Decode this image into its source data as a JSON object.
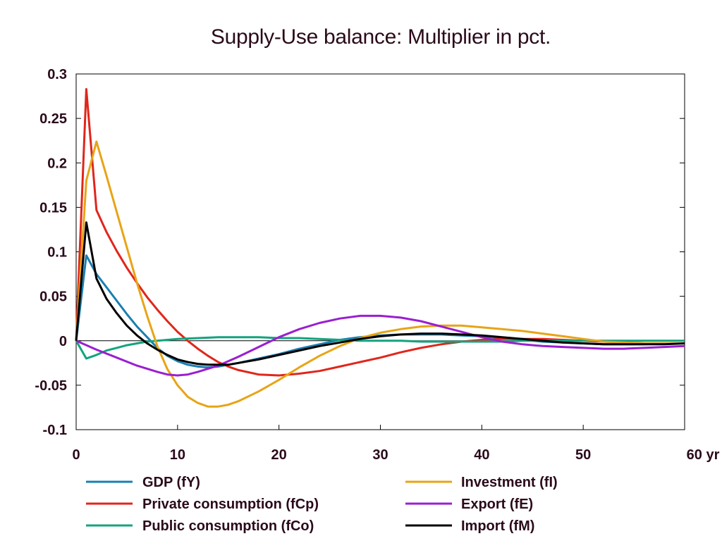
{
  "chart_data": {
    "type": "line",
    "title": "Supply-Use balance: Multiplier in pct.",
    "xlabel": "",
    "ylabel": "",
    "x_unit_label": "yr",
    "xlim": [
      0,
      60
    ],
    "ylim": [
      -0.1,
      0.3
    ],
    "x_ticks": [
      0,
      10,
      20,
      30,
      40,
      50,
      60
    ],
    "x_tick_labels": [
      "0",
      "10",
      "20",
      "30",
      "40",
      "50",
      "60 yr"
    ],
    "y_ticks": [
      -0.1,
      -0.05,
      0,
      0.05,
      0.1,
      0.15,
      0.2,
      0.25,
      0.3
    ],
    "y_tick_labels": [
      "-0.1",
      "-0.05",
      "0",
      "0.05",
      "0.1",
      "0.15",
      "0.2",
      "0.25",
      "0.3"
    ],
    "grid": false,
    "zero_line": true,
    "legend_position": "bottom",
    "series": [
      {
        "name": "GDP (fY)",
        "color": "#1a7fb0",
        "points": [
          [
            0,
            0
          ],
          [
            1,
            0.096
          ],
          [
            2,
            0.075
          ],
          [
            3,
            0.06
          ],
          [
            4,
            0.045
          ],
          [
            5,
            0.03
          ],
          [
            6,
            0.016
          ],
          [
            7,
            0.004
          ],
          [
            8,
            -0.008
          ],
          [
            9,
            -0.017
          ],
          [
            10,
            -0.023
          ],
          [
            11,
            -0.027
          ],
          [
            12,
            -0.029
          ],
          [
            13,
            -0.03
          ],
          [
            14,
            -0.029
          ],
          [
            15,
            -0.027
          ],
          [
            16,
            -0.025
          ],
          [
            18,
            -0.02
          ],
          [
            20,
            -0.015
          ],
          [
            22,
            -0.009
          ],
          [
            24,
            -0.004
          ],
          [
            26,
            0.001
          ],
          [
            28,
            0.004
          ],
          [
            30,
            0.006
          ],
          [
            32,
            0.007
          ],
          [
            34,
            0.007
          ],
          [
            36,
            0.007
          ],
          [
            38,
            0.006
          ],
          [
            40,
            0.005
          ],
          [
            42,
            0.003
          ],
          [
            44,
            0.001
          ],
          [
            46,
            -0.001
          ],
          [
            48,
            -0.002
          ],
          [
            50,
            -0.003
          ],
          [
            52,
            -0.004
          ],
          [
            54,
            -0.004
          ],
          [
            56,
            -0.004
          ],
          [
            58,
            -0.003
          ],
          [
            60,
            -0.003
          ]
        ]
      },
      {
        "name": "Private consumption (fCp)",
        "color": "#e0261b",
        "points": [
          [
            0,
            0
          ],
          [
            1,
            0.283
          ],
          [
            2,
            0.147
          ],
          [
            3,
            0.122
          ],
          [
            4,
            0.101
          ],
          [
            5,
            0.082
          ],
          [
            6,
            0.065
          ],
          [
            7,
            0.049
          ],
          [
            8,
            0.035
          ],
          [
            9,
            0.022
          ],
          [
            10,
            0.01
          ],
          [
            11,
            0.0
          ],
          [
            12,
            -0.009
          ],
          [
            13,
            -0.017
          ],
          [
            14,
            -0.024
          ],
          [
            15,
            -0.029
          ],
          [
            16,
            -0.033
          ],
          [
            18,
            -0.038
          ],
          [
            20,
            -0.039
          ],
          [
            22,
            -0.037
          ],
          [
            24,
            -0.034
          ],
          [
            26,
            -0.029
          ],
          [
            28,
            -0.024
          ],
          [
            30,
            -0.019
          ],
          [
            32,
            -0.013
          ],
          [
            34,
            -0.008
          ],
          [
            36,
            -0.004
          ],
          [
            38,
            -0.001
          ],
          [
            40,
            0.001
          ],
          [
            42,
            0.002
          ],
          [
            44,
            0.002
          ],
          [
            46,
            0.002
          ],
          [
            48,
            0.001
          ],
          [
            50,
            0.0
          ],
          [
            52,
            -0.001
          ],
          [
            54,
            -0.002
          ],
          [
            56,
            -0.003
          ],
          [
            58,
            -0.003
          ],
          [
            60,
            -0.003
          ]
        ]
      },
      {
        "name": "Public consumption (fCo)",
        "color": "#14a37f",
        "points": [
          [
            0,
            0
          ],
          [
            1,
            -0.02
          ],
          [
            2,
            -0.016
          ],
          [
            3,
            -0.011
          ],
          [
            4,
            -0.008
          ],
          [
            5,
            -0.005
          ],
          [
            6,
            -0.003
          ],
          [
            7,
            -0.001
          ],
          [
            8,
            0.0
          ],
          [
            9,
            0.001
          ],
          [
            10,
            0.002
          ],
          [
            12,
            0.003
          ],
          [
            14,
            0.004
          ],
          [
            16,
            0.004
          ],
          [
            18,
            0.004
          ],
          [
            20,
            0.003
          ],
          [
            22,
            0.003
          ],
          [
            24,
            0.002
          ],
          [
            26,
            0.001
          ],
          [
            28,
            0.0
          ],
          [
            30,
            0.0
          ],
          [
            32,
            0.0
          ],
          [
            34,
            -0.001
          ],
          [
            36,
            -0.001
          ],
          [
            38,
            -0.001
          ],
          [
            40,
            -0.001
          ],
          [
            42,
            -0.001
          ],
          [
            44,
            0.0
          ],
          [
            46,
            0.0
          ],
          [
            48,
            0.0
          ],
          [
            50,
            0.0
          ],
          [
            52,
            0.0
          ],
          [
            54,
            0.0
          ],
          [
            56,
            0.0
          ],
          [
            58,
            0.0
          ],
          [
            60,
            0.0
          ]
        ]
      },
      {
        "name": "Investment (fI)",
        "color": "#e8a416",
        "points": [
          [
            0,
            0
          ],
          [
            1,
            0.18
          ],
          [
            2,
            0.224
          ],
          [
            3,
            0.185
          ],
          [
            4,
            0.145
          ],
          [
            5,
            0.105
          ],
          [
            6,
            0.065
          ],
          [
            7,
            0.028
          ],
          [
            8,
            -0.006
          ],
          [
            9,
            -0.032
          ],
          [
            10,
            -0.05
          ],
          [
            11,
            -0.063
          ],
          [
            12,
            -0.07
          ],
          [
            13,
            -0.074
          ],
          [
            14,
            -0.074
          ],
          [
            15,
            -0.072
          ],
          [
            16,
            -0.068
          ],
          [
            18,
            -0.057
          ],
          [
            20,
            -0.044
          ],
          [
            22,
            -0.03
          ],
          [
            24,
            -0.017
          ],
          [
            26,
            -0.006
          ],
          [
            28,
            0.003
          ],
          [
            30,
            0.009
          ],
          [
            32,
            0.013
          ],
          [
            34,
            0.016
          ],
          [
            36,
            0.017
          ],
          [
            38,
            0.017
          ],
          [
            40,
            0.015
          ],
          [
            42,
            0.013
          ],
          [
            44,
            0.011
          ],
          [
            46,
            0.008
          ],
          [
            48,
            0.005
          ],
          [
            50,
            0.002
          ],
          [
            52,
            -0.001
          ],
          [
            54,
            -0.002
          ],
          [
            56,
            -0.003
          ],
          [
            58,
            -0.003
          ],
          [
            60,
            -0.003
          ]
        ]
      },
      {
        "name": "Export (fE)",
        "color": "#9a1fd0",
        "points": [
          [
            0,
            0
          ],
          [
            2,
            -0.01
          ],
          [
            4,
            -0.019
          ],
          [
            6,
            -0.028
          ],
          [
            8,
            -0.035
          ],
          [
            9,
            -0.038
          ],
          [
            10,
            -0.039
          ],
          [
            11,
            -0.038
          ],
          [
            12,
            -0.035
          ],
          [
            14,
            -0.028
          ],
          [
            16,
            -0.018
          ],
          [
            18,
            -0.007
          ],
          [
            20,
            0.004
          ],
          [
            22,
            0.013
          ],
          [
            24,
            0.02
          ],
          [
            26,
            0.025
          ],
          [
            28,
            0.028
          ],
          [
            30,
            0.028
          ],
          [
            32,
            0.026
          ],
          [
            34,
            0.022
          ],
          [
            36,
            0.016
          ],
          [
            38,
            0.01
          ],
          [
            40,
            0.004
          ],
          [
            42,
            -0.001
          ],
          [
            44,
            -0.004
          ],
          [
            46,
            -0.006
          ],
          [
            48,
            -0.007
          ],
          [
            50,
            -0.008
          ],
          [
            52,
            -0.009
          ],
          [
            54,
            -0.009
          ],
          [
            56,
            -0.008
          ],
          [
            58,
            -0.007
          ],
          [
            60,
            -0.006
          ]
        ]
      },
      {
        "name": "Import (fM)",
        "color": "#000000",
        "points": [
          [
            0,
            0
          ],
          [
            1,
            0.133
          ],
          [
            2,
            0.07
          ],
          [
            3,
            0.047
          ],
          [
            4,
            0.031
          ],
          [
            5,
            0.017
          ],
          [
            6,
            0.006
          ],
          [
            7,
            -0.003
          ],
          [
            8,
            -0.01
          ],
          [
            9,
            -0.016
          ],
          [
            10,
            -0.021
          ],
          [
            11,
            -0.024
          ],
          [
            12,
            -0.026
          ],
          [
            13,
            -0.027
          ],
          [
            14,
            -0.027
          ],
          [
            15,
            -0.027
          ],
          [
            16,
            -0.025
          ],
          [
            18,
            -0.021
          ],
          [
            20,
            -0.016
          ],
          [
            22,
            -0.011
          ],
          [
            24,
            -0.006
          ],
          [
            26,
            -0.002
          ],
          [
            28,
            0.002
          ],
          [
            30,
            0.005
          ],
          [
            32,
            0.007
          ],
          [
            34,
            0.008
          ],
          [
            36,
            0.008
          ],
          [
            38,
            0.007
          ],
          [
            40,
            0.006
          ],
          [
            42,
            0.004
          ],
          [
            44,
            0.002
          ],
          [
            46,
            0.0
          ],
          [
            48,
            -0.002
          ],
          [
            50,
            -0.003
          ],
          [
            52,
            -0.004
          ],
          [
            54,
            -0.004
          ],
          [
            56,
            -0.004
          ],
          [
            58,
            -0.004
          ],
          [
            60,
            -0.003
          ]
        ]
      }
    ]
  }
}
